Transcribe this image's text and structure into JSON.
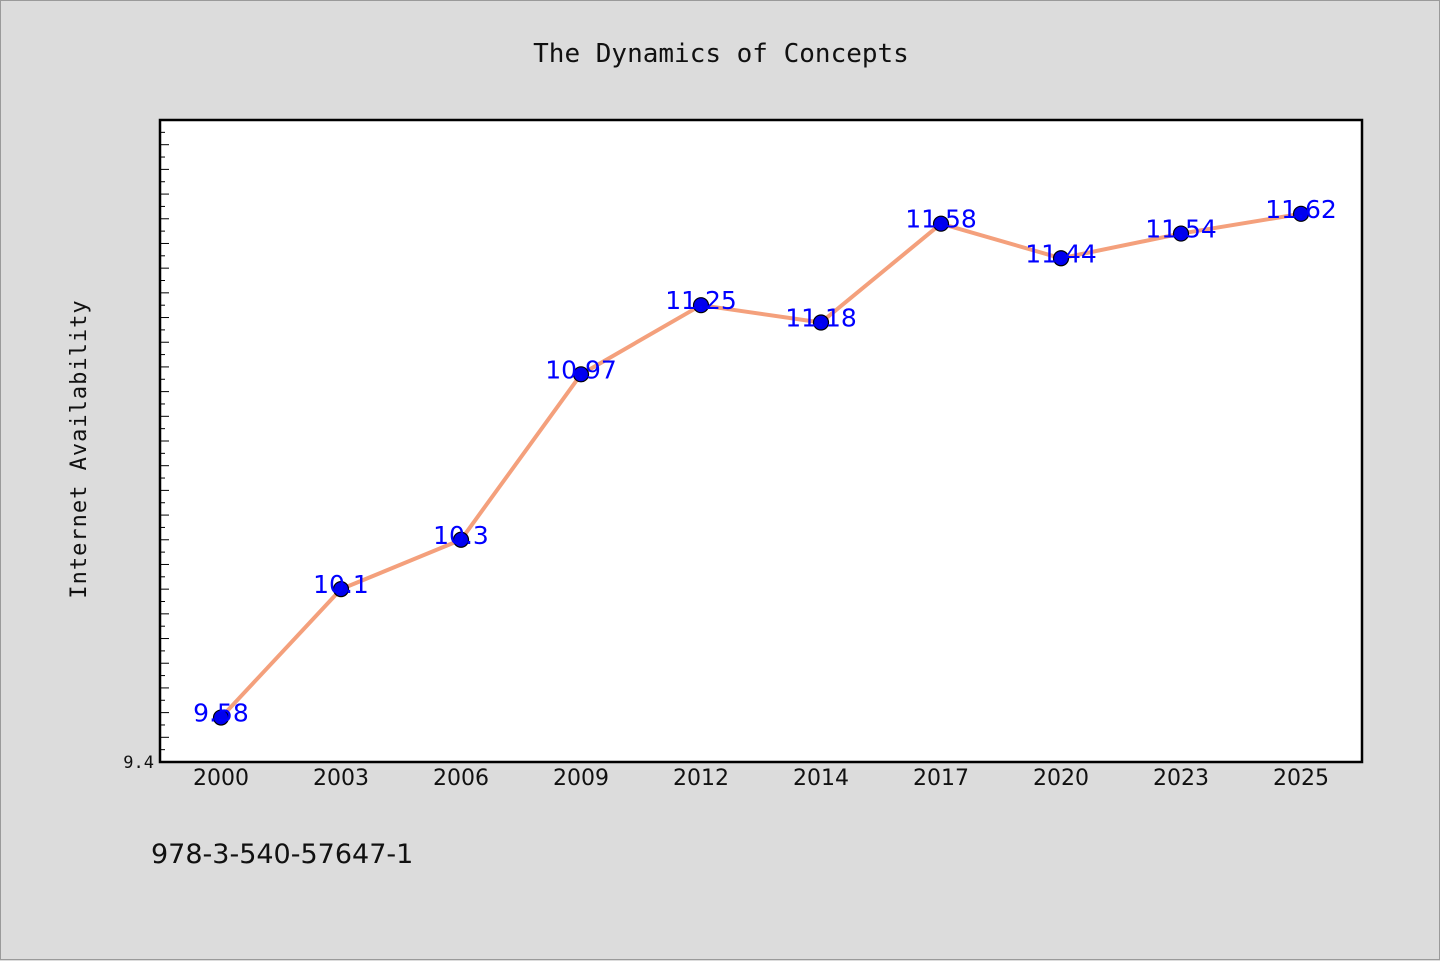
{
  "chart_data": {
    "type": "line",
    "title": "The Dynamics of Concepts",
    "xlabel": "",
    "ylabel": "Internet Availability",
    "categories": [
      "2000",
      "2003",
      "2006",
      "2009",
      "2012",
      "2014",
      "2017",
      "2020",
      "2023",
      "2025"
    ],
    "series": [
      {
        "values": [
          9.58,
          10.1,
          10.3,
          10.97,
          11.25,
          11.18,
          11.58,
          11.44,
          11.54,
          11.62
        ],
        "data_labels": [
          "9.58",
          "10.1",
          "10.3",
          "10.97",
          "11.25",
          "11.18",
          "11.58",
          "11.44",
          "11.54",
          "11.62"
        ]
      }
    ],
    "yticks": [
      "9.4"
    ],
    "ylim": [
      9.4,
      12.0
    ],
    "grid": false,
    "colors": {
      "line": "#f4a07c",
      "marker": "#0000ee",
      "data_label": "#0000ff",
      "plot_bg": "#ffffff",
      "figure_bg": "#dcdcdc"
    }
  },
  "footer": {
    "text": "978-3-540-57647-1"
  }
}
